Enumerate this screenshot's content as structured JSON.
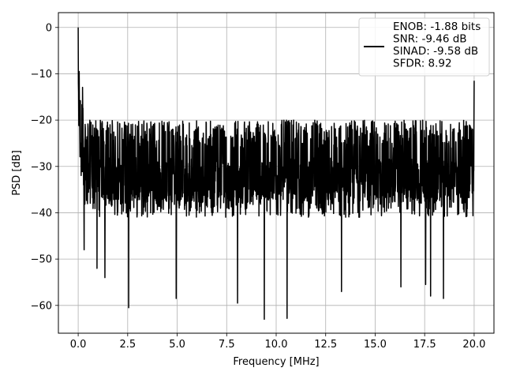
{
  "chart_data": {
    "type": "line",
    "title": "",
    "xlabel": "Frequency [MHz]",
    "ylabel": "PSD [dB]",
    "xlim": [
      -1.0,
      21.0
    ],
    "ylim": [
      -66,
      3.2
    ],
    "xticks": [
      0.0,
      2.5,
      5.0,
      7.5,
      10.0,
      12.5,
      15.0,
      17.5,
      20.0
    ],
    "xtick_labels": [
      "0.0",
      "2.5",
      "5.0",
      "7.5",
      "10.0",
      "12.5",
      "15.0",
      "17.5",
      "20.0"
    ],
    "yticks": [
      0,
      -10,
      -20,
      -30,
      -40,
      -50,
      -60
    ],
    "ytick_labels": [
      "0",
      "−10",
      "−20",
      "−30",
      "−40",
      "−50",
      "−60"
    ],
    "grid": true,
    "legend_position": "top-right",
    "legend_lines": [
      "ENOB: -1.88 bits",
      "SNR: -9.46 dB",
      "SINAD: -9.58 dB",
      "SFDR: 8.92"
    ],
    "series": [
      {
        "color": "#000000",
        "x_range": [
          0.0,
          20.0
        ],
        "noise_floor_typical": [
          -38,
          -20
        ],
        "peaks": [
          {
            "x": 0.0,
            "y": 0.0
          },
          {
            "x": 0.05,
            "y": -9.5
          },
          {
            "x": 20.0,
            "y": -11.5
          }
        ],
        "dips": [
          {
            "x": 0.3,
            "y": -48
          },
          {
            "x": 0.95,
            "y": -52
          },
          {
            "x": 1.35,
            "y": -54
          },
          {
            "x": 2.55,
            "y": -60.5
          },
          {
            "x": 4.95,
            "y": -58.5
          },
          {
            "x": 8.05,
            "y": -59.5
          },
          {
            "x": 9.4,
            "y": -63
          },
          {
            "x": 10.55,
            "y": -62.8
          },
          {
            "x": 13.3,
            "y": -57
          },
          {
            "x": 16.3,
            "y": -56
          },
          {
            "x": 17.55,
            "y": -55.5
          },
          {
            "x": 17.8,
            "y": -58
          },
          {
            "x": 18.45,
            "y": -58.5
          }
        ]
      }
    ]
  }
}
